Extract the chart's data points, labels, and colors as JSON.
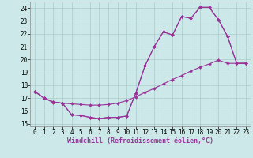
{
  "background_color": "#cce8e8",
  "grid_color": "#aacccc",
  "line_color": "#993399",
  "xlim": [
    -0.5,
    23.5
  ],
  "ylim": [
    14.8,
    24.5
  ],
  "xticks": [
    0,
    1,
    2,
    3,
    4,
    5,
    6,
    7,
    8,
    9,
    10,
    11,
    12,
    13,
    14,
    15,
    16,
    17,
    18,
    19,
    20,
    21,
    22,
    23
  ],
  "yticks": [
    15,
    16,
    17,
    18,
    19,
    20,
    21,
    22,
    23,
    24
  ],
  "series1_x": [
    0,
    1,
    2,
    3,
    4,
    5,
    6,
    7,
    8,
    9,
    10,
    11,
    12,
    13,
    14,
    15,
    16,
    17,
    18,
    19,
    20,
    21,
    22,
    23
  ],
  "series1_y": [
    17.5,
    17.0,
    16.7,
    16.6,
    15.7,
    15.65,
    15.5,
    15.4,
    15.5,
    15.5,
    15.6,
    17.4,
    19.5,
    21.0,
    22.15,
    21.9,
    23.35,
    23.2,
    24.05,
    24.05,
    23.1,
    21.8,
    19.7,
    19.7
  ],
  "series2_x": [
    0,
    1,
    2,
    3,
    4,
    5,
    6,
    7,
    8,
    9,
    10,
    11,
    12,
    13,
    14,
    15,
    16,
    17,
    18,
    19,
    20,
    21,
    22,
    23
  ],
  "series2_y": [
    17.5,
    17.0,
    16.7,
    16.6,
    16.55,
    16.5,
    16.45,
    16.45,
    16.5,
    16.6,
    16.8,
    17.1,
    17.45,
    17.75,
    18.1,
    18.45,
    18.75,
    19.1,
    19.4,
    19.65,
    19.95,
    19.7,
    19.7,
    19.7
  ],
  "series3_x": [
    0,
    1,
    2,
    3,
    4,
    5,
    6,
    7,
    8,
    9,
    10,
    11,
    12,
    13,
    14,
    15,
    16,
    17,
    18,
    19,
    20,
    21,
    22,
    23
  ],
  "series3_y": [
    17.5,
    17.0,
    16.65,
    16.6,
    15.7,
    15.65,
    15.5,
    15.4,
    15.5,
    15.5,
    15.6,
    17.4,
    19.5,
    21.0,
    22.15,
    21.9,
    23.35,
    23.2,
    24.05,
    24.05,
    23.1,
    21.8,
    19.7,
    19.7
  ],
  "xlabel": "Windchill (Refroidissement éolien,°C)",
  "marker": "D",
  "markersize": 2.0,
  "linewidth": 0.8,
  "xlabel_fontsize": 6.0,
  "tick_fontsize": 5.5
}
